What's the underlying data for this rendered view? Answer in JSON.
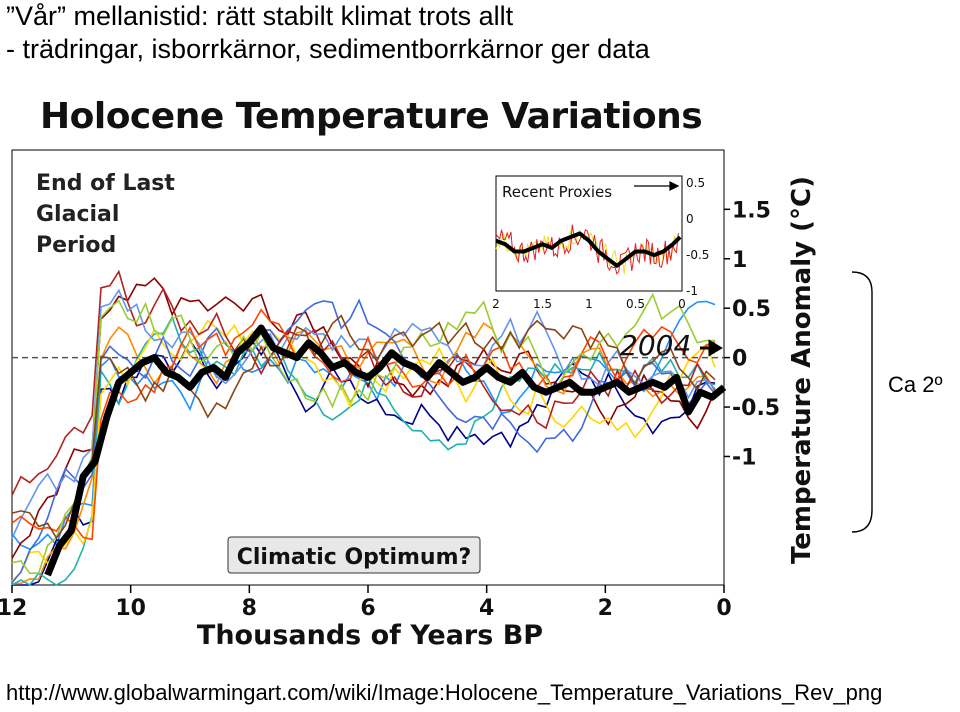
{
  "slide": {
    "title_line1": "”Vår” mellanistid: rätt stabilt klimat trots allt",
    "title_line2": "- trädringar, isborrkärnor, sedimentborrkärnor ger data",
    "brace_label": "Ca 2º",
    "url": "http://www.globalwarmingart.com/wiki/Image:Holocene_Temperature_Variations_Rev_png"
  },
  "colors": {
    "main_line": "#000000",
    "dashed_zero": "#555555",
    "proxies": [
      "#1e90ff",
      "#00008b",
      "#8b0000",
      "#ff8c00",
      "#20b2aa",
      "#ffd700",
      "#4169e1",
      "#b22222",
      "#6495ed",
      "#ff4500",
      "#9acd32",
      "#8b4513"
    ],
    "inset_red": "#e02020",
    "inset_yellow": "#e8e020",
    "optimum_box_fill": "#e8e8e8"
  },
  "chart_data": {
    "type": "line",
    "title": "Holocene Temperature Variations",
    "xlabel": "Thousands of Years BP",
    "ylabel": "Temperature Anomaly (°C)",
    "xlim": [
      12,
      0
    ],
    "ylim": [
      -2.3,
      2.1
    ],
    "x_ticks": [
      "12",
      "10",
      "8",
      "6",
      "4",
      "2",
      "0"
    ],
    "y_ticks": [
      "1.5",
      "1",
      "0.5",
      "0",
      "-0.5",
      "-1"
    ],
    "annotations": {
      "glacial": [
        "End of Last",
        "Glacial",
        "Period"
      ],
      "optimum": "Climatic Optimum?",
      "year_2004": "2004"
    },
    "main_series": {
      "x": [
        11.4,
        11.2,
        11.0,
        10.8,
        10.6,
        10.4,
        10.2,
        10.0,
        9.8,
        9.6,
        9.4,
        9.2,
        9.0,
        8.8,
        8.6,
        8.4,
        8.2,
        8.0,
        7.8,
        7.6,
        7.4,
        7.2,
        7.0,
        6.8,
        6.6,
        6.4,
        6.2,
        6.0,
        5.8,
        5.6,
        5.4,
        5.2,
        5.0,
        4.8,
        4.6,
        4.4,
        4.2,
        4.0,
        3.8,
        3.6,
        3.4,
        3.2,
        3.0,
        2.8,
        2.6,
        2.4,
        2.2,
        2.0,
        1.8,
        1.6,
        1.4,
        1.2,
        1.0,
        0.8,
        0.6,
        0.4,
        0.2,
        0.0
      ],
      "y": [
        -2.2,
        -1.9,
        -1.75,
        -1.2,
        -1.05,
        -0.6,
        -0.25,
        -0.15,
        -0.05,
        0.0,
        -0.15,
        -0.2,
        -0.3,
        -0.15,
        -0.1,
        -0.2,
        0.05,
        0.15,
        0.3,
        0.1,
        0.05,
        0.0,
        0.15,
        0.05,
        -0.1,
        -0.05,
        -0.15,
        -0.2,
        -0.1,
        0.05,
        -0.05,
        -0.1,
        -0.2,
        -0.05,
        -0.15,
        -0.25,
        -0.2,
        -0.1,
        -0.2,
        -0.25,
        -0.15,
        -0.3,
        -0.35,
        -0.3,
        -0.25,
        -0.35,
        -0.35,
        -0.3,
        -0.25,
        -0.35,
        -0.3,
        -0.25,
        -0.3,
        -0.2,
        -0.55,
        -0.35,
        -0.4,
        -0.3
      ]
    },
    "inset": {
      "title": "Recent Proxies",
      "x_ticks": [
        "2",
        "1.5",
        "1",
        "0.5",
        "0"
      ],
      "y_ticks": [
        "0.5",
        "0",
        "-0.5",
        "-1"
      ],
      "xlim": [
        2,
        0
      ],
      "ylim": [
        -1.0,
        0.6
      ],
      "smooth": {
        "x": [
          2.0,
          1.9,
          1.8,
          1.7,
          1.6,
          1.5,
          1.4,
          1.3,
          1.2,
          1.1,
          1.0,
          0.9,
          0.8,
          0.7,
          0.6,
          0.5,
          0.4,
          0.3,
          0.2,
          0.1,
          0.02
        ],
        "y": [
          -0.3,
          -0.35,
          -0.45,
          -0.45,
          -0.4,
          -0.35,
          -0.4,
          -0.3,
          -0.25,
          -0.2,
          -0.3,
          -0.45,
          -0.55,
          -0.65,
          -0.55,
          -0.45,
          -0.45,
          -0.5,
          -0.45,
          -0.35,
          -0.25
        ]
      }
    }
  }
}
